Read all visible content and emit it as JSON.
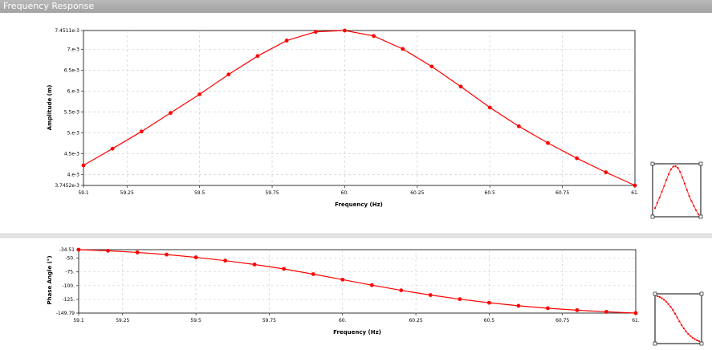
{
  "window": {
    "title": "Frequency Response"
  },
  "chart_data": [
    {
      "type": "line",
      "xlabel": "Frequency (Hz)",
      "ylabel": "Amplitude (m)",
      "xlim": [
        59.1,
        61.0
      ],
      "ylim": [
        0.0037452,
        0.0074511
      ],
      "x_ticks": [
        {
          "v": 59.1,
          "label": "59.1"
        },
        {
          "v": 59.25,
          "label": "59.25"
        },
        {
          "v": 59.5,
          "label": "59.5"
        },
        {
          "v": 59.75,
          "label": "59.75"
        },
        {
          "v": 60.0,
          "label": "60."
        },
        {
          "v": 60.25,
          "label": "60.25"
        },
        {
          "v": 60.5,
          "label": "60.5"
        },
        {
          "v": 60.75,
          "label": "60.75"
        },
        {
          "v": 61.0,
          "label": "61."
        }
      ],
      "y_ticks": [
        {
          "v": 0.0074511,
          "label": "7.4511e-3"
        },
        {
          "v": 0.007,
          "label": "7.e-3"
        },
        {
          "v": 0.0065,
          "label": "6.5e-3"
        },
        {
          "v": 0.006,
          "label": "6.e-3"
        },
        {
          "v": 0.0055,
          "label": "5.5e-3"
        },
        {
          "v": 0.005,
          "label": "5.e-3"
        },
        {
          "v": 0.0045,
          "label": "4.5e-3"
        },
        {
          "v": 0.004,
          "label": "4.e-3"
        },
        {
          "v": 0.0037452,
          "label": "3.7452e-3"
        }
      ],
      "grid": true,
      "color": "#ff0000",
      "x": [
        59.1,
        59.2,
        59.3,
        59.4,
        59.5,
        59.6,
        59.7,
        59.8,
        59.9,
        60.0,
        60.1,
        60.2,
        60.3,
        60.4,
        60.5,
        60.6,
        60.7,
        60.8,
        60.9,
        61.0
      ],
      "y": [
        0.004225,
        0.004625,
        0.005035,
        0.00548,
        0.005925,
        0.0064,
        0.00684,
        0.00721,
        0.00742,
        0.007451,
        0.00732,
        0.00701,
        0.00659,
        0.00611,
        0.00561,
        0.00516,
        0.00476,
        0.004395,
        0.00406,
        0.003745
      ]
    },
    {
      "type": "line",
      "xlabel": "Frequency (Hz)",
      "ylabel": "Phase Angle (°)",
      "xlim": [
        59.1,
        61.0
      ],
      "ylim": [
        -149.79,
        -34.51
      ],
      "x_ticks": [
        {
          "v": 59.1,
          "label": "59.1"
        },
        {
          "v": 59.25,
          "label": "59.25"
        },
        {
          "v": 59.5,
          "label": "59.5"
        },
        {
          "v": 59.75,
          "label": "59.75"
        },
        {
          "v": 60.0,
          "label": "60."
        },
        {
          "v": 60.25,
          "label": "60.25"
        },
        {
          "v": 60.5,
          "label": "60.5"
        },
        {
          "v": 60.75,
          "label": "60.75"
        },
        {
          "v": 61.0,
          "label": "61."
        }
      ],
      "y_ticks": [
        {
          "v": -34.51,
          "label": "-34.51"
        },
        {
          "v": -50,
          "label": "-50."
        },
        {
          "v": -75,
          "label": "-75."
        },
        {
          "v": -100,
          "label": "-100."
        },
        {
          "v": -125,
          "label": "-125."
        },
        {
          "v": -149.79,
          "label": "-149.79"
        }
      ],
      "grid": true,
      "color": "#ff0000",
      "x": [
        59.1,
        59.2,
        59.3,
        59.4,
        59.5,
        59.6,
        59.7,
        59.8,
        59.9,
        60.0,
        60.1,
        60.2,
        60.3,
        60.4,
        60.5,
        60.6,
        60.7,
        60.8,
        60.9,
        61.0
      ],
      "y": [
        -34.51,
        -36.5,
        -39.5,
        -43.5,
        -48.5,
        -54.5,
        -61.5,
        -69.5,
        -79,
        -89,
        -99,
        -108.5,
        -117,
        -124.5,
        -131,
        -136.5,
        -141,
        -144.5,
        -147.5,
        -149.79
      ]
    }
  ]
}
